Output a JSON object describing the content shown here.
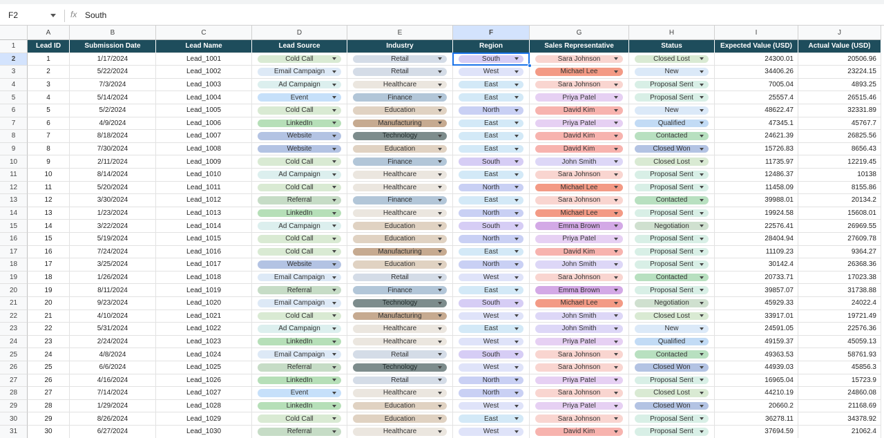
{
  "name_box": "F2",
  "formula": "South",
  "column_letters": [
    "A",
    "B",
    "C",
    "D",
    "E",
    "F",
    "G",
    "H",
    "I",
    "J"
  ],
  "row_numbers": [
    "1",
    "2",
    "3",
    "4",
    "5",
    "6",
    "7",
    "8",
    "9",
    "10",
    "11",
    "12",
    "13",
    "14",
    "15",
    "16",
    "17",
    "18",
    "19",
    "20",
    "21",
    "22",
    "23",
    "24",
    "25",
    "26",
    "27",
    "28",
    "29",
    "30",
    "31"
  ],
  "table": {
    "header": [
      "Lead ID",
      "Submission Date",
      "Lead Name",
      "Lead Source",
      "Industry",
      "Region",
      "Sales Representative",
      "Status",
      "Expected Value (USD)",
      "Actual Value (USD)"
    ],
    "rows": [
      [
        "1",
        "1/17/2024",
        "Lead_1001",
        "Cold Call",
        "Retail",
        "South",
        "Sara Johnson",
        "Closed Lost",
        "24300.01",
        "20506.96"
      ],
      [
        "2",
        "5/22/2024",
        "Lead_1002",
        "Email Campaign",
        "Retail",
        "West",
        "Michael Lee",
        "New",
        "34406.26",
        "23224.15"
      ],
      [
        "3",
        "7/3/2024",
        "Lead_1003",
        "Ad Campaign",
        "Healthcare",
        "East",
        "Sara Johnson",
        "Proposal Sent",
        "7005.04",
        "4893.25"
      ],
      [
        "4",
        "5/14/2024",
        "Lead_1004",
        "Event",
        "Finance",
        "East",
        "Priya Patel",
        "Proposal Sent",
        "25557.4",
        "26515.46"
      ],
      [
        "5",
        "5/2/2024",
        "Lead_1005",
        "Cold Call",
        "Education",
        "North",
        "David Kim",
        "New",
        "48622.47",
        "32331.89"
      ],
      [
        "6",
        "4/9/2024",
        "Lead_1006",
        "LinkedIn",
        "Manufacturing",
        "East",
        "Priya Patel",
        "Qualified",
        "47345.1",
        "45767.7"
      ],
      [
        "7",
        "8/18/2024",
        "Lead_1007",
        "Website",
        "Technology",
        "East",
        "David Kim",
        "Contacted",
        "24621.39",
        "26825.56"
      ],
      [
        "8",
        "7/30/2024",
        "Lead_1008",
        "Website",
        "Education",
        "East",
        "David Kim",
        "Closed Won",
        "15726.83",
        "8656.43"
      ],
      [
        "9",
        "2/11/2024",
        "Lead_1009",
        "Cold Call",
        "Finance",
        "South",
        "John Smith",
        "Closed Lost",
        "11735.97",
        "12219.45"
      ],
      [
        "10",
        "8/14/2024",
        "Lead_1010",
        "Ad Campaign",
        "Healthcare",
        "East",
        "Sara Johnson",
        "Proposal Sent",
        "12486.37",
        "10138"
      ],
      [
        "11",
        "5/20/2024",
        "Lead_1011",
        "Cold Call",
        "Healthcare",
        "North",
        "Michael Lee",
        "Proposal Sent",
        "11458.09",
        "8155.86"
      ],
      [
        "12",
        "3/30/2024",
        "Lead_1012",
        "Referral",
        "Finance",
        "East",
        "Sara Johnson",
        "Contacted",
        "39988.01",
        "20134.2"
      ],
      [
        "13",
        "1/23/2024",
        "Lead_1013",
        "LinkedIn",
        "Healthcare",
        "North",
        "Michael Lee",
        "Proposal Sent",
        "19924.58",
        "15608.01"
      ],
      [
        "14",
        "3/22/2024",
        "Lead_1014",
        "Ad Campaign",
        "Education",
        "South",
        "Emma Brown",
        "Negotiation",
        "22576.41",
        "26969.55"
      ],
      [
        "15",
        "5/19/2024",
        "Lead_1015",
        "Cold Call",
        "Education",
        "North",
        "Priya Patel",
        "Proposal Sent",
        "28404.94",
        "27609.78"
      ],
      [
        "16",
        "7/24/2024",
        "Lead_1016",
        "Cold Call",
        "Manufacturing",
        "East",
        "David Kim",
        "Proposal Sent",
        "11109.23",
        "9364.27"
      ],
      [
        "17",
        "3/25/2024",
        "Lead_1017",
        "Website",
        "Education",
        "North",
        "John Smith",
        "Proposal Sent",
        "30142.4",
        "26368.36"
      ],
      [
        "18",
        "1/26/2024",
        "Lead_1018",
        "Email Campaign",
        "Retail",
        "West",
        "Sara Johnson",
        "Contacted",
        "20733.71",
        "17023.38"
      ],
      [
        "19",
        "8/11/2024",
        "Lead_1019",
        "Referral",
        "Finance",
        "East",
        "Emma Brown",
        "Proposal Sent",
        "39857.07",
        "31738.88"
      ],
      [
        "20",
        "9/23/2024",
        "Lead_1020",
        "Email Campaign",
        "Technology",
        "South",
        "Michael Lee",
        "Negotiation",
        "45929.33",
        "24022.4"
      ],
      [
        "21",
        "4/10/2024",
        "Lead_1021",
        "Cold Call",
        "Manufacturing",
        "West",
        "John Smith",
        "Closed Lost",
        "33917.01",
        "19721.49"
      ],
      [
        "22",
        "5/31/2024",
        "Lead_1022",
        "Ad Campaign",
        "Healthcare",
        "East",
        "John Smith",
        "New",
        "24591.05",
        "22576.36"
      ],
      [
        "23",
        "2/24/2024",
        "Lead_1023",
        "LinkedIn",
        "Healthcare",
        "West",
        "Priya Patel",
        "Qualified",
        "49159.37",
        "45059.13"
      ],
      [
        "24",
        "4/8/2024",
        "Lead_1024",
        "Email Campaign",
        "Retail",
        "South",
        "Sara Johnson",
        "Contacted",
        "49363.53",
        "58761.93"
      ],
      [
        "25",
        "6/6/2024",
        "Lead_1025",
        "Referral",
        "Technology",
        "West",
        "Sara Johnson",
        "Closed Won",
        "44939.03",
        "45856.3"
      ],
      [
        "26",
        "4/16/2024",
        "Lead_1026",
        "LinkedIn",
        "Retail",
        "North",
        "Priya Patel",
        "Proposal Sent",
        "16965.04",
        "15723.9"
      ],
      [
        "27",
        "7/14/2024",
        "Lead_1027",
        "Event",
        "Healthcare",
        "North",
        "Sara Johnson",
        "Closed Lost",
        "44210.19",
        "24860.08"
      ],
      [
        "28",
        "1/29/2024",
        "Lead_1028",
        "LinkedIn",
        "Education",
        "West",
        "Priya Patel",
        "Closed Won",
        "20660.2",
        "21168.69"
      ],
      [
        "29",
        "8/26/2024",
        "Lead_1029",
        "Cold Call",
        "Education",
        "East",
        "Sara Johnson",
        "Proposal Sent",
        "36278.11",
        "34378.92"
      ],
      [
        "30",
        "6/27/2024",
        "Lead_1030",
        "Referral",
        "Healthcare",
        "West",
        "David Kim",
        "Proposal Sent",
        "37694.59",
        "21062.4"
      ]
    ]
  },
  "chip_colors": {
    "3": {
      "Cold Call": "#d9ead3",
      "Email Campaign": "#dde9f6",
      "Ad Campaign": "#dcefee",
      "Event": "#c6e0fa",
      "LinkedIn": "#b6dfb8",
      "Website": "#b3c3e3",
      "Referral": "#c6dcc6"
    },
    "4": {
      "Retail": "#d4dce7",
      "Healthcare": "#ebe6df",
      "Finance": "#b2c6d8",
      "Education": "#e0d2c2",
      "Manufacturing": "#c6aa90",
      "Technology": "#7d8c8c"
    },
    "5": {
      "South": "#d6cdf5",
      "West": "#dfe3f9",
      "East": "#d3e9f7",
      "North": "#c9d0f4"
    },
    "6": {
      "Sara Johnson": "#f9d5d0",
      "Michael Lee": "#f39a85",
      "Priya Patel": "#e6d0f3",
      "David Kim": "#f7b3ae",
      "John Smith": "#ddd7f7",
      "Emma Brown": "#d3a9e6"
    },
    "7": {
      "Closed Lost": "#d9ead3",
      "New": "#dbe9f8",
      "Proposal Sent": "#d8efe6",
      "Qualified": "#c2dbf5",
      "Contacted": "#b8e0c0",
      "Closed Won": "#b3c3e3",
      "Negotiation": "#cfe0cf"
    }
  }
}
